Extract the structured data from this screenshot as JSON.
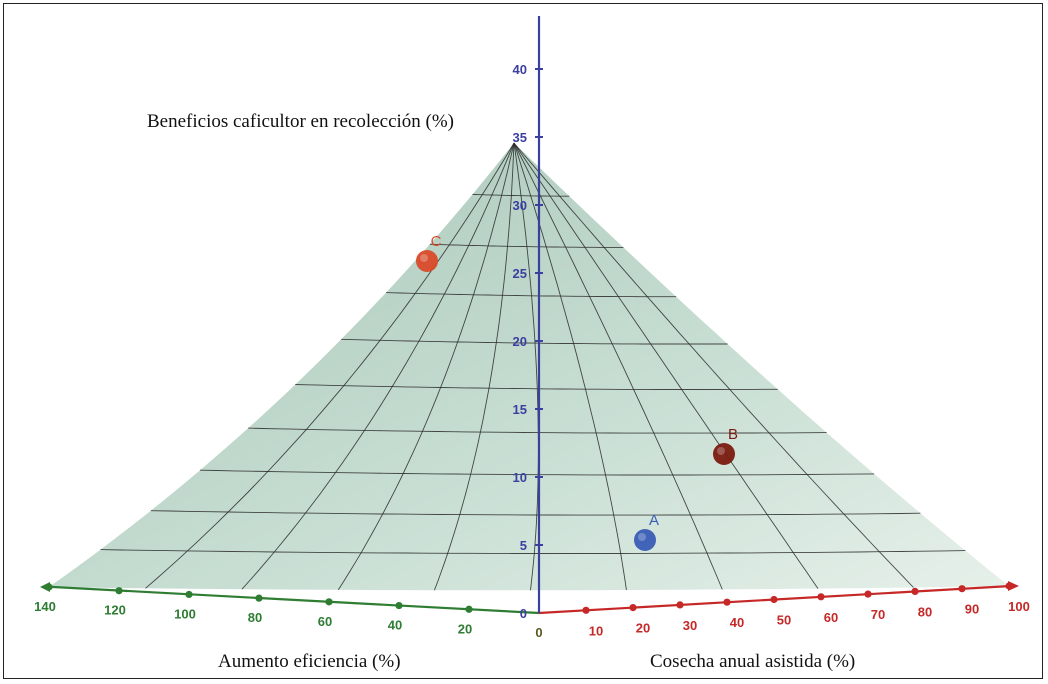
{
  "chart_data": {
    "type": "surface3d",
    "axes": {
      "z": {
        "title": "Beneficios caficultor en recolección (%)",
        "ticks": [
          0,
          5,
          10,
          15,
          20,
          25,
          30,
          35,
          40
        ],
        "color": "#3b3fa0"
      },
      "efficiency": {
        "title": "Aumento eficiencia (%)",
        "ticks": [
          20,
          40,
          60,
          80,
          100,
          120,
          140
        ],
        "color": "#2e7d32"
      },
      "harvest": {
        "title": "Cosecha anual asistida (%)",
        "ticks": [
          10,
          20,
          30,
          40,
          50,
          60,
          70,
          80,
          90,
          100
        ],
        "color": "#c62828"
      },
      "origin_label": "0"
    },
    "points": [
      {
        "label": "A",
        "color": "#3a5db5"
      },
      {
        "label": "B",
        "color": "#7a1a10"
      },
      {
        "label": "C",
        "color": "#d84a2a"
      }
    ],
    "surface_color": "#c4dcd0"
  }
}
